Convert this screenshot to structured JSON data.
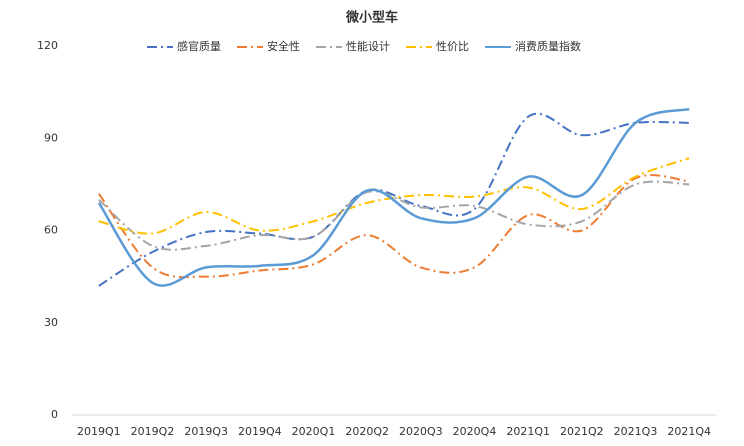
{
  "chart_data": {
    "type": "line",
    "title": "微小型车",
    "categories": [
      "2019Q1",
      "2019Q2",
      "2019Q3",
      "2019Q4",
      "2020Q1",
      "2020Q2",
      "2020Q3",
      "2020Q4",
      "2021Q1",
      "2021Q2",
      "2021Q3",
      "2021Q4"
    ],
    "series": [
      {
        "name": "感官质量",
        "color": "#4472c4",
        "style": "dashdot",
        "values": [
          42,
          53,
          59.5,
          59,
          58,
          73,
          68,
          67,
          97,
          91,
          95,
          95
        ]
      },
      {
        "name": "安全性",
        "color": "#ed7d31",
        "style": "dashdot",
        "values": [
          72,
          48,
          45,
          47,
          49,
          58.5,
          48,
          48,
          65,
          60,
          77,
          76
        ]
      },
      {
        "name": "性能设计",
        "color": "#a5a5a5",
        "style": "dashdot",
        "values": [
          70,
          55,
          55,
          58.5,
          58,
          72.5,
          67.5,
          68,
          62,
          63,
          75,
          75
        ]
      },
      {
        "name": "性价比",
        "color": "#ffc000",
        "style": "dashdot",
        "values": [
          63,
          59,
          66,
          60,
          63,
          69,
          71.5,
          71,
          74,
          67,
          77.5,
          83.5
        ]
      },
      {
        "name": "消费质量指数",
        "color": "#5b9bd5",
        "style": "solid",
        "values": [
          69,
          43,
          48,
          48.5,
          52,
          73,
          64,
          64,
          77.5,
          71.5,
          95,
          99.5
        ]
      }
    ],
    "ylim": [
      0,
      120
    ],
    "yticks": [
      0,
      30,
      60,
      90,
      120
    ],
    "smooth": true,
    "grid": false,
    "legend": "top"
  }
}
